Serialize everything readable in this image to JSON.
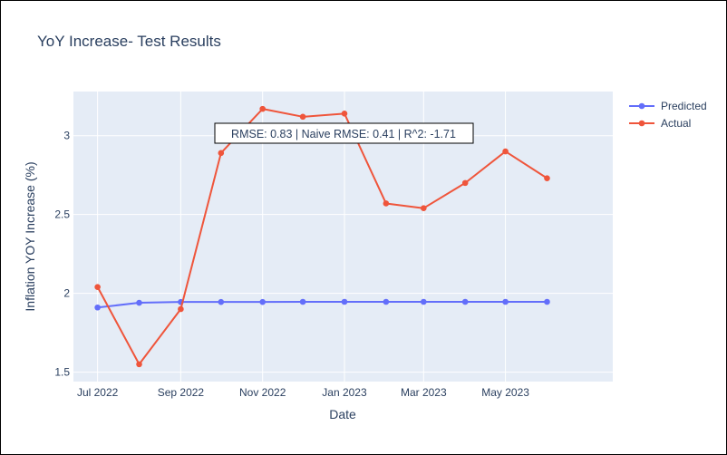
{
  "chart_data": {
    "type": "line",
    "title": "YoY Increase- Test Results",
    "xlabel": "Date",
    "ylabel": "Inflation YOY Increase (%)",
    "x": [
      "2022-07-01",
      "2022-08-01",
      "2022-09-01",
      "2022-10-01",
      "2022-11-01",
      "2022-12-01",
      "2023-01-01",
      "2023-02-01",
      "2023-03-01",
      "2023-04-01",
      "2023-05-01",
      "2023-06-01"
    ],
    "series": [
      {
        "name": "Predicted",
        "color": "#636efa",
        "values": [
          1.91,
          1.94,
          1.945,
          1.945,
          1.945,
          1.946,
          1.946,
          1.946,
          1.946,
          1.946,
          1.946,
          1.946
        ]
      },
      {
        "name": "Actual",
        "color": "#ef553b",
        "values": [
          2.04,
          1.55,
          1.9,
          2.89,
          3.17,
          3.12,
          3.14,
          2.57,
          2.54,
          2.7,
          2.9,
          2.73
        ]
      }
    ],
    "x_ticks": [
      {
        "date": "2022-07-01",
        "label": "Jul 2022"
      },
      {
        "date": "2022-09-01",
        "label": "Sep 2022"
      },
      {
        "date": "2022-11-01",
        "label": "Nov 2022"
      },
      {
        "date": "2023-01-01",
        "label": "Jan 2023"
      },
      {
        "date": "2023-03-01",
        "label": "Mar 2023"
      },
      {
        "date": "2023-05-01",
        "label": "May 2023"
      }
    ],
    "y_ticks": [
      1.5,
      2,
      2.5,
      3
    ],
    "y_tick_labels": [
      "1.5",
      "2",
      "2.5",
      "3"
    ],
    "ylim": [
      1.44,
      3.28
    ],
    "xlim": [
      "2022-06-13",
      "2023-07-20"
    ],
    "grid": true,
    "plot_bgcolor": "#e5ecf6",
    "legend_position": "top-right",
    "annotation": "RMSE: 0.83 | Naive RMSE: 0.41 | R^2: -1.71"
  }
}
